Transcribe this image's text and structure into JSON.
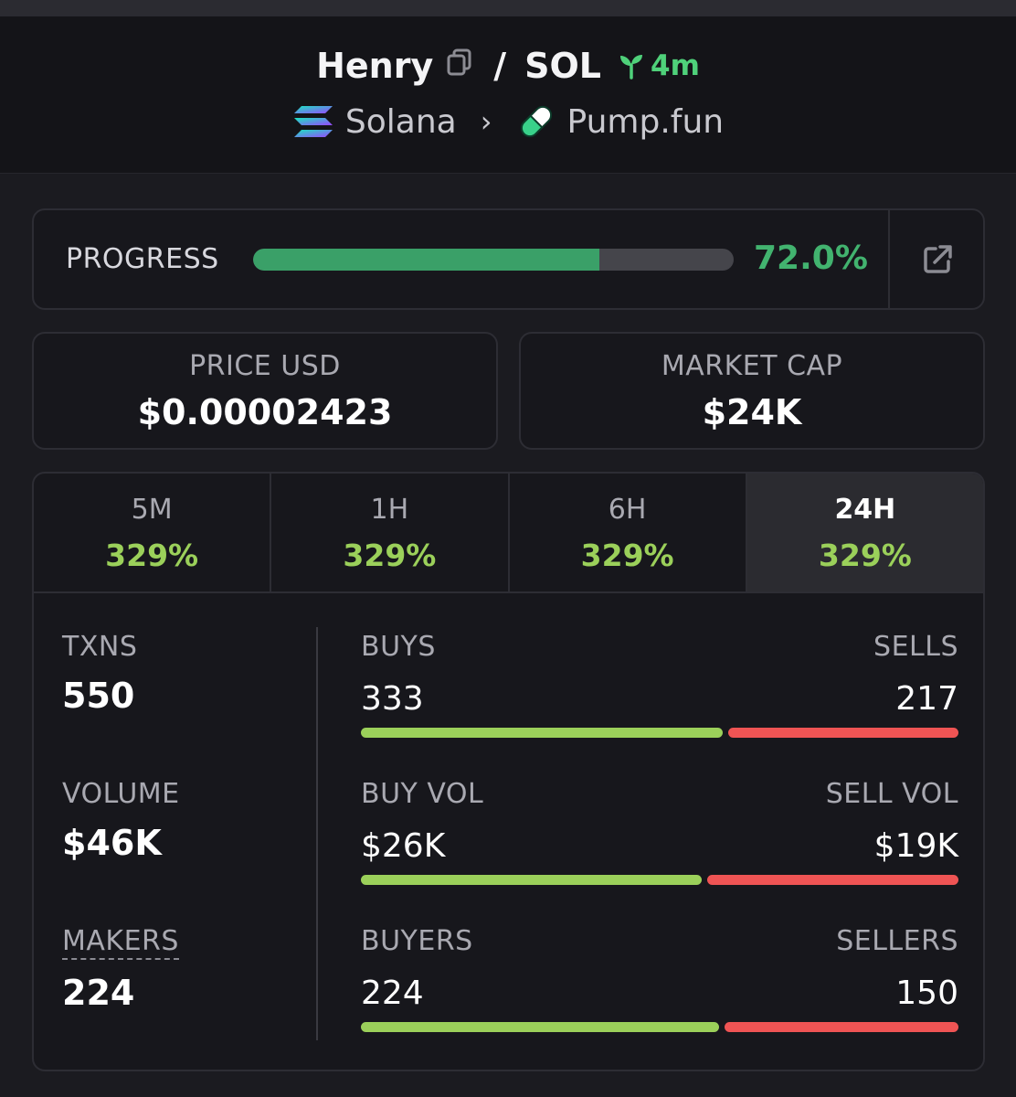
{
  "header": {
    "token_name": "Henry",
    "separator": "/",
    "quote": "SOL",
    "age": "4m",
    "chain": "Solana",
    "dex": "Pump.fun"
  },
  "progress": {
    "label": "PROGRESS",
    "percent_text": "72.0%",
    "fraction": 0.72
  },
  "stats": {
    "price_label": "PRICE USD",
    "price_value": "$0.00002423",
    "mcap_label": "MARKET CAP",
    "mcap_value": "$24K"
  },
  "tabs": [
    {
      "label": "5M",
      "value": "329%"
    },
    {
      "label": "1H",
      "value": "329%"
    },
    {
      "label": "6H",
      "value": "329%"
    },
    {
      "label": "24H",
      "value": "329%",
      "active": true
    }
  ],
  "metrics": {
    "txns_label": "TXNS",
    "txns_value": "550",
    "volume_label": "VOLUME",
    "volume_value": "$46K",
    "makers_label": "MAKERS",
    "makers_value": "224"
  },
  "splits": [
    {
      "left_label": "BUYS",
      "right_label": "SELLS",
      "left_value": "333",
      "right_value": "217",
      "buy_fraction": 0.605
    },
    {
      "left_label": "BUY VOL",
      "right_label": "SELL VOL",
      "left_value": "$26K",
      "right_value": "$19K",
      "buy_fraction": 0.57
    },
    {
      "left_label": "BUYERS",
      "right_label": "SELLERS",
      "left_value": "224",
      "right_value": "150",
      "buy_fraction": 0.6
    }
  ],
  "colors": {
    "accent_green": "#42b36f",
    "buy_green": "#9bd05a",
    "sell_red": "#ef5454",
    "background": "#1b1b20"
  },
  "icons": {
    "copy": "copy-icon",
    "age": "seedling-icon",
    "chain": "solana-logo-icon",
    "dex": "pill-icon",
    "external": "external-link-icon"
  }
}
